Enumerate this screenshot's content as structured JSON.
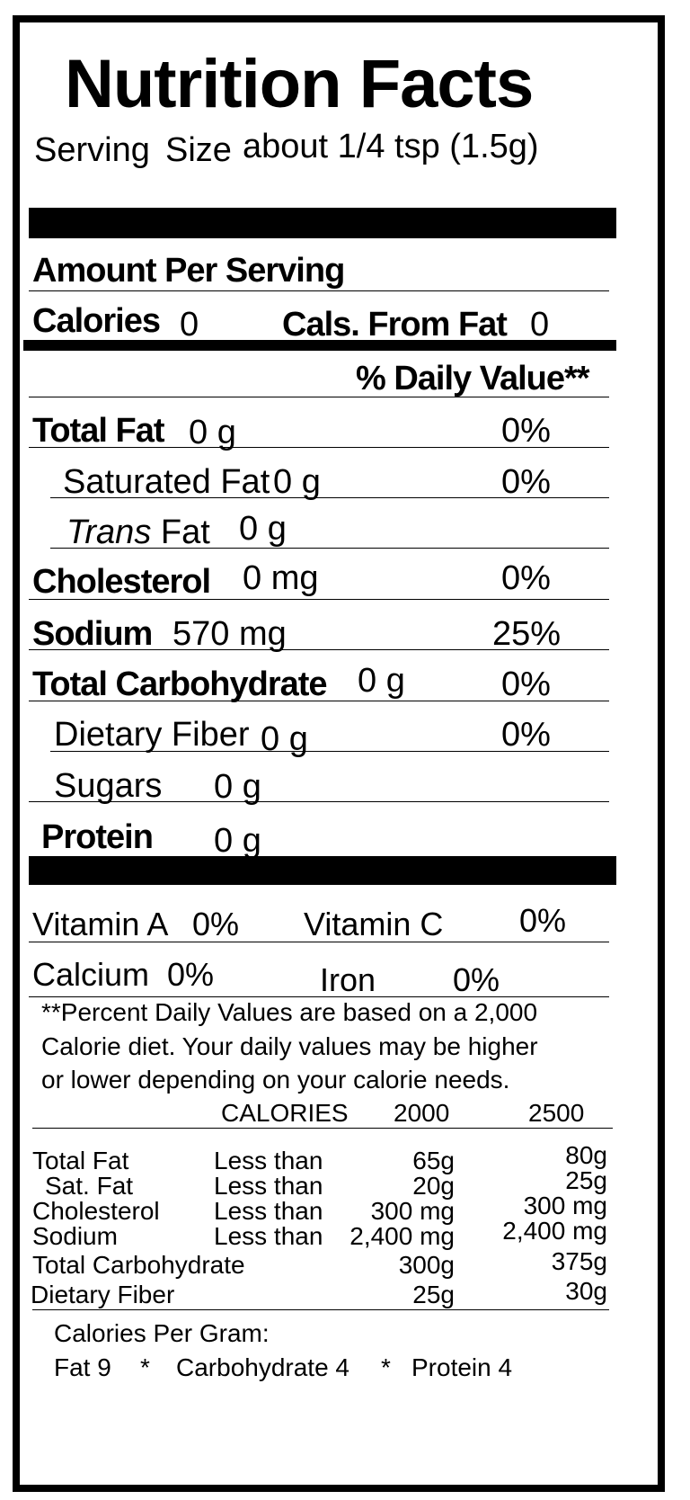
{
  "title": "Nutrition Facts",
  "serving": {
    "label_1": "Serving",
    "label_2": "Size",
    "value": "about 1/4 tsp (1.5g)"
  },
  "amount_per_serving": "Amount Per Serving",
  "calories": {
    "label": "Calories",
    "value": "0",
    "fat_label": "Cals. From Fat",
    "fat_value": "0"
  },
  "daily_value_header": "% Daily Value**",
  "nutrients": [
    {
      "label": "Total Fat",
      "amount": "0 g",
      "dv": "0%"
    },
    {
      "label": "Saturated Fat",
      "amount": "0 g",
      "dv": "0%"
    },
    {
      "label_italic": "Trans",
      "label": "Fat",
      "amount": "0 g",
      "dv": ""
    },
    {
      "label": "Cholesterol",
      "amount": "0 mg",
      "dv": "0%"
    },
    {
      "label": "Sodium",
      "amount": "570 mg",
      "dv": "25%"
    },
    {
      "label": "Total Carbohydrate",
      "amount": "0 g",
      "dv": "0%"
    },
    {
      "label": "Dietary Fiber",
      "amount": "0 g",
      "dv": "0%"
    },
    {
      "label": "Sugars",
      "amount": "0 g",
      "dv": ""
    },
    {
      "label": "Protein",
      "amount": "0 g",
      "dv": ""
    }
  ],
  "vitamins": {
    "vitamin_a": {
      "label": "Vitamin A",
      "value": "0%"
    },
    "vitamin_c": {
      "label": "Vitamin C",
      "value": "0%"
    },
    "calcium": {
      "label": "Calcium",
      "value": "0%"
    },
    "iron": {
      "label": "Iron",
      "value": "0%"
    }
  },
  "footnote": [
    "**Percent Daily Values are based on a 2,000",
    "Calorie diet.  Your daily values may be higher",
    "or lower depending on your calorie needs."
  ],
  "reference": {
    "header": {
      "label": "CALORIES",
      "col1": "2000",
      "col2": "2500"
    },
    "rows": [
      {
        "label": "Total Fat",
        "qualifier": "Less than",
        "col1": "65g",
        "col2": "80g"
      },
      {
        "label": "Sat. Fat",
        "qualifier": "Less than",
        "col1": "20g",
        "col2": "25g"
      },
      {
        "label": "Cholesterol",
        "qualifier": "Less than",
        "col1": "300 mg",
        "col2": "300 mg"
      },
      {
        "label": "Sodium",
        "qualifier": "Less than",
        "col1": "2,400 mg",
        "col2": "2,400 mg"
      },
      {
        "label": "Total Carbohydrate",
        "qualifier": "",
        "col1": "300g",
        "col2": "375g"
      },
      {
        "label": "Dietary Fiber",
        "qualifier": "",
        "col1": "25g",
        "col2": "30g"
      }
    ]
  },
  "calories_per_gram": {
    "heading": "Calories Per Gram:",
    "fat": "Fat 9",
    "sep1": "*",
    "carbohydrate": "Carbohydrate  4",
    "sep2": "*",
    "protein": "Protein 4"
  }
}
